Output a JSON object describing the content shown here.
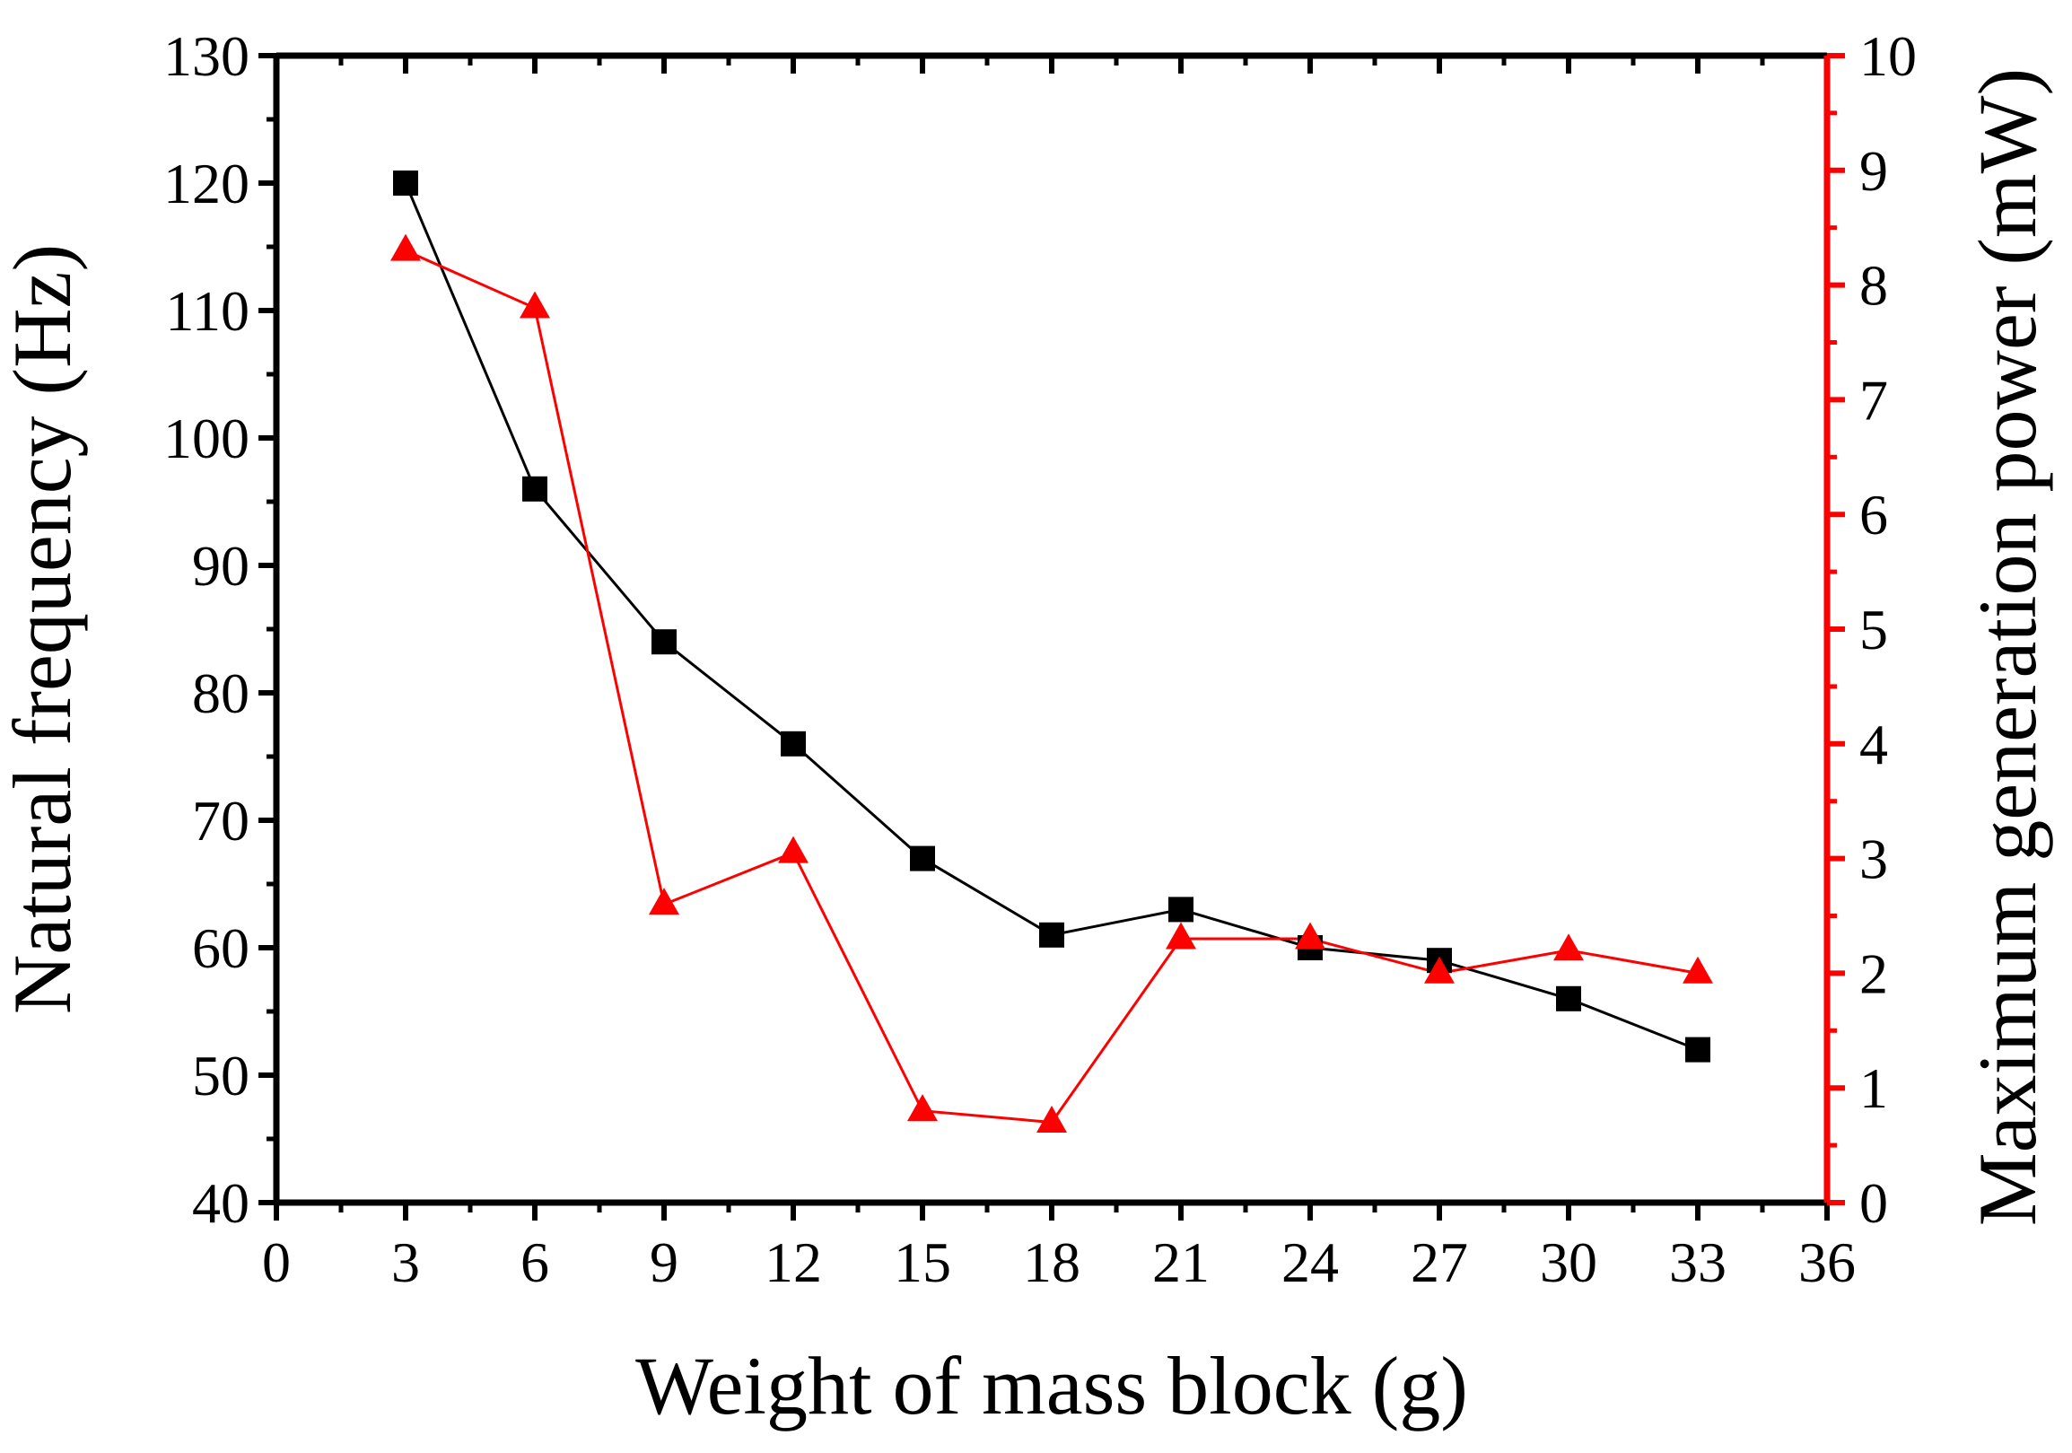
{
  "chart_data": {
    "type": "line",
    "title": "",
    "xlabel": "Weight of mass block (g)",
    "ylabel": "Natural frequency (Hz)",
    "y2label": "Maximum generation power (mW)",
    "xlim": [
      0,
      36
    ],
    "ylim": [
      40,
      130
    ],
    "y2lim": [
      0,
      10
    ],
    "x_ticks": [
      "0",
      "3",
      "6",
      "9",
      "12",
      "15",
      "18",
      "21",
      "24",
      "27",
      "30",
      "33",
      "36"
    ],
    "y_ticks": [
      "40",
      "50",
      "60",
      "70",
      "80",
      "90",
      "100",
      "110",
      "120",
      "130"
    ],
    "y2_ticks": [
      "0",
      "1",
      "2",
      "3",
      "4",
      "5",
      "6",
      "7",
      "8",
      "9",
      "10"
    ],
    "grid": false,
    "legend": "none",
    "series": [
      {
        "name": "Natural frequency",
        "axis": "left",
        "marker": "square",
        "color": "#000000",
        "x": [
          3,
          6,
          9,
          12,
          15,
          18,
          21,
          24,
          27,
          30,
          33
        ],
        "values": [
          120,
          96,
          84,
          76,
          67,
          61,
          63,
          60,
          59,
          56,
          52
        ]
      },
      {
        "name": "Maximum generation power",
        "axis": "right",
        "marker": "triangle",
        "color": "#ff0000",
        "x": [
          3,
          6,
          9,
          12,
          15,
          18,
          21,
          24,
          27,
          30,
          33
        ],
        "values": [
          8.3,
          7.8,
          2.6,
          3.05,
          0.8,
          0.7,
          2.3,
          2.3,
          2.0,
          2.2,
          2.0
        ]
      }
    ]
  }
}
